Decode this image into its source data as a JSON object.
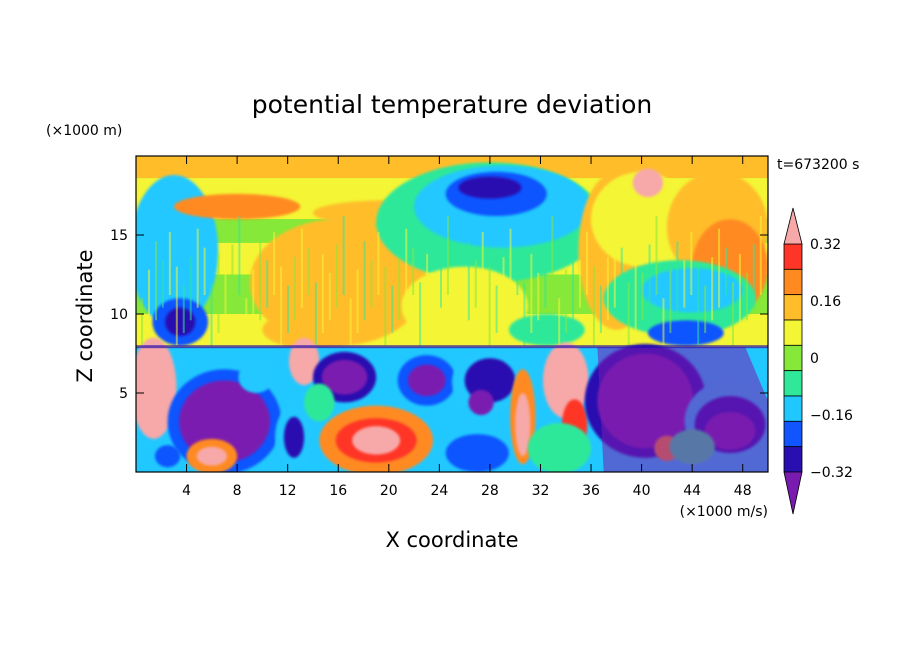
{
  "chart_data": {
    "type": "heatmap",
    "title": "potential temperature deviation",
    "xlabel": "X coordinate",
    "ylabel": "Z coordinate",
    "x_unit": "(×1000 m/s)",
    "y_unit": "(×1000 m)",
    "time_label": "t=673200 s",
    "xlim": [
      0,
      50
    ],
    "ylim": [
      0,
      20
    ],
    "x_ticks": [
      4,
      8,
      12,
      16,
      20,
      24,
      28,
      32,
      36,
      40,
      44,
      48
    ],
    "y_ticks": [
      5,
      10,
      15
    ],
    "colorbar": {
      "levels": [
        -0.4,
        -0.32,
        -0.24,
        -0.16,
        -0.08,
        0,
        0.08,
        0.16,
        0.24,
        0.32,
        0.4
      ],
      "tick_labels": [
        "0.32",
        "0.16",
        "0",
        "−0.16",
        "−0.32"
      ],
      "tick_values": [
        0.32,
        0.16,
        0,
        -0.16,
        -0.32
      ],
      "colors": [
        "#7a1bb0",
        "#2a0fb0",
        "#1155ff",
        "#21c8ff",
        "#2fe89a",
        "#86e838",
        "#f4f534",
        "#ffbd2a",
        "#ff8a20",
        "#ff3528",
        "#f7a8a8"
      ],
      "extend": "both"
    },
    "note_layers": "filled contour field; upper layer (z>8) mostly near 0 with cool core near x≈28,z≈17; lower layer (z<8) strong alternating cells"
  }
}
